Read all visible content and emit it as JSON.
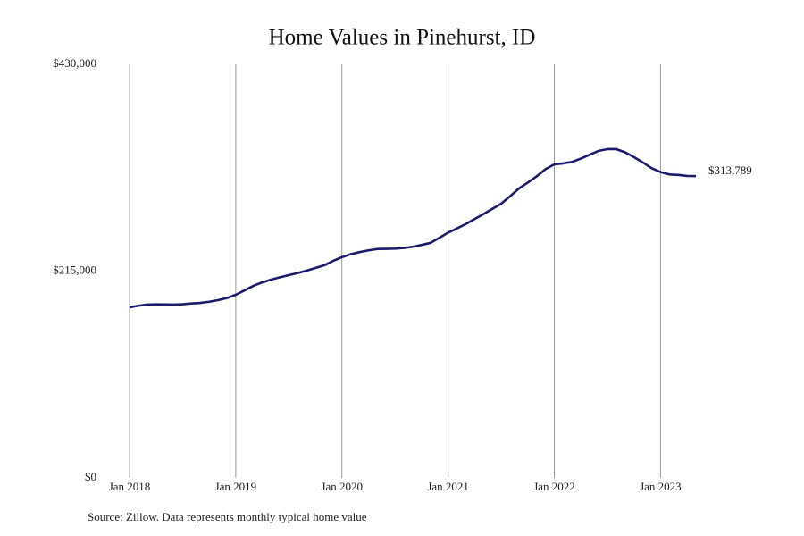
{
  "chart_data": {
    "type": "line",
    "title": "Home Values in Pinehurst, ID",
    "source": "Source: Zillow. Data represents monthly typical home value",
    "x": [
      "2018-01",
      "2018-02",
      "2018-03",
      "2018-04",
      "2018-05",
      "2018-06",
      "2018-07",
      "2018-08",
      "2018-09",
      "2018-10",
      "2018-11",
      "2018-12",
      "2019-01",
      "2019-02",
      "2019-03",
      "2019-04",
      "2019-05",
      "2019-06",
      "2019-07",
      "2019-08",
      "2019-09",
      "2019-10",
      "2019-11",
      "2019-12",
      "2020-01",
      "2020-02",
      "2020-03",
      "2020-04",
      "2020-05",
      "2020-06",
      "2020-07",
      "2020-08",
      "2020-09",
      "2020-10",
      "2020-11",
      "2020-12",
      "2021-01",
      "2021-02",
      "2021-03",
      "2021-04",
      "2021-05",
      "2021-06",
      "2021-07",
      "2021-08",
      "2021-09",
      "2021-10",
      "2021-11",
      "2021-12",
      "2022-01",
      "2022-02",
      "2022-03",
      "2022-04",
      "2022-05",
      "2022-06",
      "2022-07",
      "2022-08",
      "2022-09",
      "2022-10",
      "2022-11",
      "2022-12",
      "2023-01",
      "2023-02",
      "2023-03",
      "2023-04",
      "2023-05"
    ],
    "series": [
      {
        "color": "#1c1a6b",
        "values": [
          177400,
          179000,
          180200,
          180500,
          180300,
          180200,
          180600,
          181400,
          182000,
          183200,
          184800,
          187000,
          190400,
          195000,
          199700,
          203300,
          206200,
          208600,
          210800,
          213000,
          215500,
          218200,
          221000,
          225600,
          229500,
          232600,
          234800,
          236600,
          238000,
          238200,
          238400,
          239100,
          240300,
          242200,
          244300,
          249600,
          255000,
          259400,
          264000,
          269200,
          274300,
          279800,
          285100,
          292800,
          300900,
          307000,
          313500,
          321000,
          326000,
          327000,
          328500,
          332000,
          336000,
          340000,
          341800,
          341800,
          338500,
          333500,
          328000,
          322000,
          318000,
          315500,
          315000,
          314000,
          313789
        ],
        "value_labels": [
          null,
          null,
          null,
          null,
          null,
          null,
          null,
          null,
          null,
          null,
          null,
          null,
          null,
          null,
          null,
          null,
          null,
          null,
          null,
          null,
          null,
          null,
          null,
          null,
          null,
          null,
          null,
          null,
          null,
          null,
          null,
          null,
          null,
          null,
          null,
          null,
          null,
          null,
          null,
          null,
          null,
          null,
          null,
          null,
          null,
          null,
          null,
          null,
          null,
          null,
          null,
          null,
          null,
          null,
          null,
          null,
          null,
          null,
          null,
          null,
          null,
          null,
          null,
          null,
          "$313,789"
        ]
      }
    ],
    "xlim": [
      "2018-01",
      "2023-05"
    ],
    "xticks": [
      {
        "value": "2018-01",
        "label": "Jan 2018"
      },
      {
        "value": "2019-01",
        "label": "Jan 2019"
      },
      {
        "value": "2020-01",
        "label": "Jan 2020"
      },
      {
        "value": "2021-01",
        "label": "Jan 2021"
      },
      {
        "value": "2022-01",
        "label": "Jan 2022"
      },
      {
        "value": "2023-01",
        "label": "Jan 2023"
      }
    ],
    "ylim": [
      0,
      430000
    ],
    "yticks": [
      {
        "value": 0,
        "label": "$0"
      },
      {
        "value": 215000,
        "label": "$215,000"
      },
      {
        "value": 430000,
        "label": "$430,000"
      }
    ],
    "grid": "x"
  }
}
